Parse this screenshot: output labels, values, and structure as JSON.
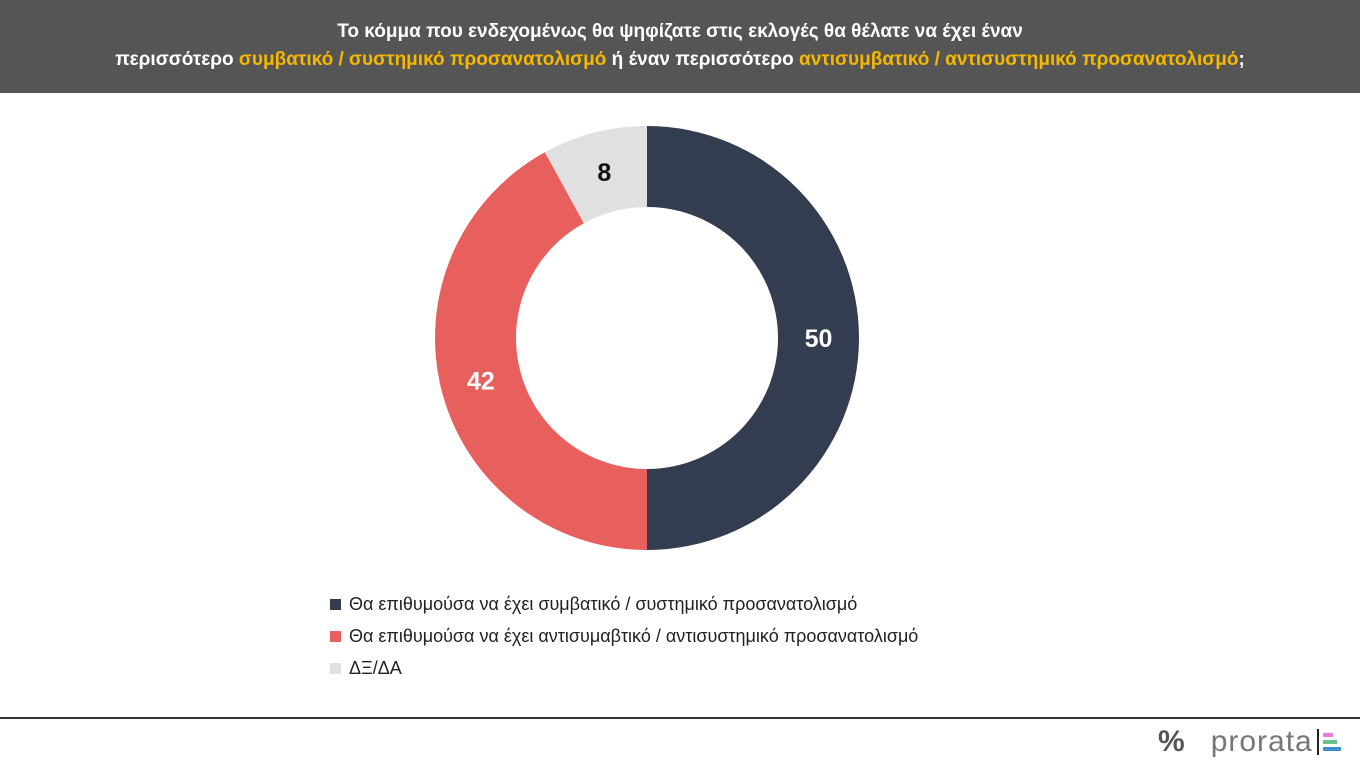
{
  "header": {
    "line1": "Το κόμμα που ενδεχομένως θα ψηφίζατε στις εκλογές θα θέλατε να έχει έναν",
    "line2_a": "περισσότερο ",
    "line2_b": "συμβατικό / συστημικό προσανατολισμό",
    "line2_c": " ή έναν περισσότερο ",
    "line2_d": "αντισυμβατικό / αντισυστημικό προσανατολισμό",
    "line2_e": ";"
  },
  "chart_data": {
    "type": "pie",
    "donut": true,
    "categories": [
      "Θα επιθυμούσα να έχει συμβατικό / συστημικό προσανατολισμό",
      "Θα επιθυμούσα να έχει αντισυμαβτικό / αντισυστημικό προσανατολισμό",
      "ΔΞ/ΔΑ"
    ],
    "values": [
      50,
      42,
      8
    ],
    "labels": [
      "50",
      "42",
      "8"
    ],
    "colors": [
      "#333d4f",
      "#e8605e",
      "#e0e0e0"
    ],
    "label_colors": [
      "#ffffff",
      "#ffffff",
      "#111111"
    ],
    "legend_position": "bottom"
  },
  "footer": {
    "symbol": "%",
    "brand": "prorata",
    "bar_colors": [
      "#e87cd8",
      "#6cc08a",
      "#3f8fd2"
    ]
  }
}
